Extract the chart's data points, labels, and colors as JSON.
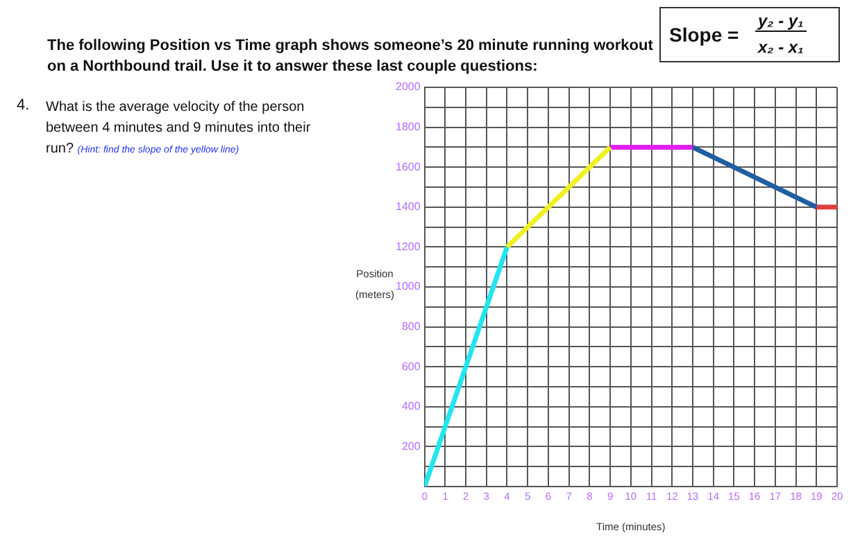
{
  "chart_data": {
    "type": "line",
    "title": "The following Position vs Time graph shows someone’s 20 minute running workout on a Northbound trail. Use it to answer these last couple questions:",
    "xlabel": "Time (minutes)",
    "ylabel": "Position (meters)",
    "annotations": [
      "Slope =",
      "y₂ - y₁",
      "x₂ - x₁",
      "4.",
      "What is the average velocity of the person between 4 minutes and 9 minutes into their run?",
      "(Hint: find the slope of the yellow line)"
    ],
    "series": [
      {
        "color": "#22e5f0",
        "x": [
          0,
          4
        ],
        "values": [
          0,
          1200
        ]
      },
      {
        "color": "#f0f022",
        "x": [
          4,
          9
        ],
        "values": [
          1200,
          1700
        ]
      },
      {
        "color": "#e020f0",
        "x": [
          9,
          13
        ],
        "values": [
          1700,
          1700
        ]
      },
      {
        "color": "#1f5fa0",
        "x": [
          13,
          19
        ],
        "values": [
          1700,
          1400
        ]
      },
      {
        "color": "#e04040",
        "x": [
          19,
          20
        ],
        "values": [
          1400,
          1400
        ]
      }
    ],
    "xlim": [
      0,
      20
    ],
    "xticks": [
      0,
      1,
      2,
      3,
      4,
      5,
      6,
      7,
      8,
      9,
      10,
      11,
      12,
      13,
      14,
      15,
      16,
      17,
      18,
      19,
      20
    ],
    "ylim": [
      0,
      2000
    ],
    "yticks": [
      {
        "value": 0,
        "label": null
      },
      {
        "value": 100,
        "label": null
      },
      200,
      {
        "value": 300,
        "label": null
      },
      400,
      {
        "value": 500,
        "label": null
      },
      600,
      {
        "value": 700,
        "label": null
      },
      800,
      {
        "value": 900,
        "label": null
      },
      1000,
      {
        "value": 1100,
        "label": null
      },
      1200,
      {
        "value": 1300,
        "label": null
      },
      1400,
      {
        "value": 1500,
        "label": null
      },
      1600,
      {
        "value": 1700,
        "label": null
      },
      1800,
      {
        "value": 1900,
        "label": null
      },
      2000
    ],
    "grid": true,
    "legend": false,
    "marker": "none",
    "line_style": "solid"
  }
}
